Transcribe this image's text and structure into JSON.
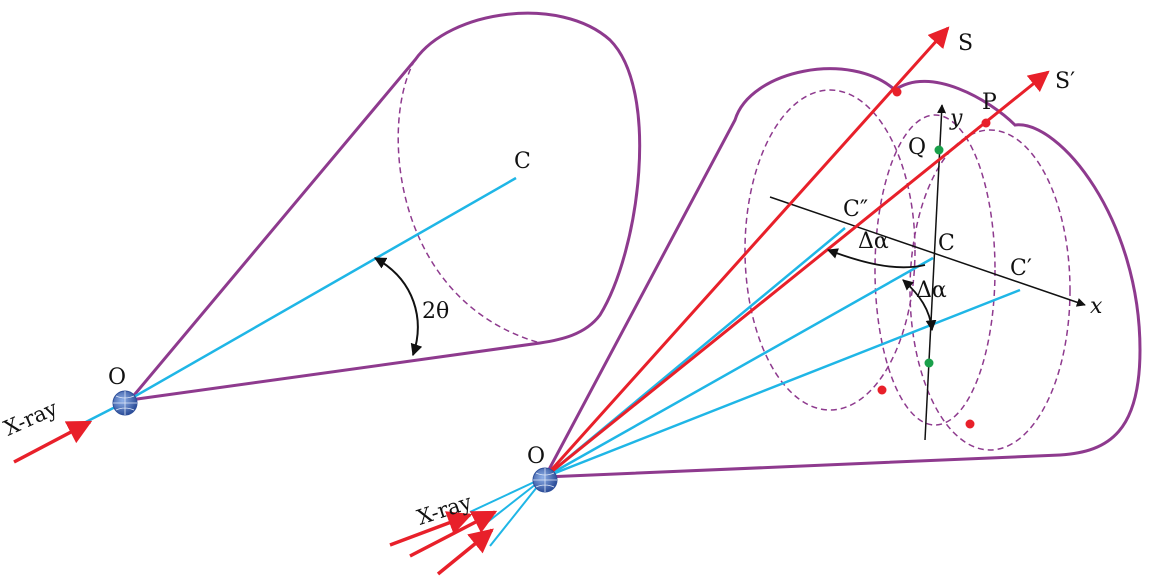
{
  "colors": {
    "cone": "#8e3a8e",
    "axis_beam": "#1fb6e6",
    "xray": "#e8202a",
    "diffracted": "#e8202a",
    "intersection_point": "#e8202a",
    "projection_point": "#19a04a",
    "sample": "#2e4f9a",
    "text": "#111111"
  },
  "left_figure": {
    "origin_label": "O",
    "center_label": "C",
    "angle_label": "2θ",
    "incident_label": "X-ray"
  },
  "right_figure": {
    "origin_label": "O",
    "incident_label": "X-ray",
    "ray_s_label": "S",
    "ray_s_prime_label": "S′",
    "point_p_label": "P",
    "point_q_label": "Q",
    "axis_x_label": "x",
    "axis_y_label": "y",
    "center_c_label": "C",
    "center_c_prime_label": "C′",
    "center_c_double_prime_label": "C″",
    "delta_alpha_1": "Δα",
    "delta_alpha_2": "Δα"
  }
}
